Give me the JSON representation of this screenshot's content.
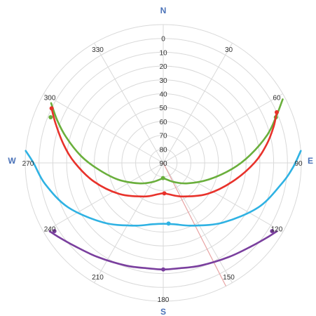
{
  "colors": {
    "grid": "#d9d9d9",
    "compass": "#4a72b8",
    "tick_text": "#333333",
    "green": "#6aaf3c",
    "red": "#e8322b",
    "blue": "#2fb2e3",
    "purple": "#7a3f9e",
    "pointer": "#e8a3a3"
  },
  "compass_labels": {
    "n": "N",
    "e": "E",
    "s": "S",
    "w": "W"
  },
  "chart_data": {
    "type": "polar-line",
    "title": "",
    "angular_axis": {
      "direction": "clockwise",
      "zero_at": "top",
      "ticks": [
        0,
        30,
        60,
        90,
        120,
        150,
        180,
        210,
        240,
        270,
        300,
        330
      ],
      "tick_labels": [
        "0",
        "30",
        "60",
        "90",
        "120",
        "150",
        "180",
        "210",
        "240",
        "270",
        "300",
        "330"
      ]
    },
    "radial_axis": {
      "label_position": "along-north",
      "ticks": [
        0,
        10,
        20,
        30,
        40,
        50,
        60,
        70,
        80,
        90
      ],
      "tick_labels": [
        "0",
        "10",
        "20",
        "30",
        "40",
        "50",
        "60",
        "70",
        "80",
        "90"
      ],
      "range_center_to_edge": [
        90,
        -10
      ],
      "grid": true
    },
    "series": [
      {
        "color": "green",
        "curve": {
          "az": [
            62,
            68,
            75,
            85,
            95,
            110,
            130,
            150,
            170,
            180,
            190,
            210,
            230,
            250,
            265,
            275,
            285,
            292,
            298
          ],
          "alt": [
            -8,
            2,
            12,
            27,
            40,
            55,
            67,
            74,
            78,
            79,
            78,
            74,
            67,
            55,
            42,
            30,
            17,
            7,
            -2
          ]
        },
        "markers": [
          {
            "az": 68,
            "alt": 2
          },
          {
            "az": 181,
            "alt": 79
          },
          {
            "az": 292,
            "alt": 2
          }
        ]
      },
      {
        "color": "red",
        "curve": {
          "az": [
            66,
            72,
            80,
            90,
            105,
            125,
            150,
            170,
            180,
            190,
            210,
            235,
            255,
            270,
            280,
            290,
            296
          ],
          "alt": [
            0,
            6,
            14,
            24,
            38,
            51,
            62,
            67,
            68,
            67,
            62,
            51,
            38,
            26,
            17,
            7,
            0
          ]
        },
        "markers": [
          {
            "az": 66,
            "alt": 0
          },
          {
            "az": 178,
            "alt": 68
          },
          {
            "az": 296,
            "alt": 0
          }
        ]
      },
      {
        "color": "blue",
        "curve": {
          "az": [
            85,
            92,
            100,
            115,
            135,
            155,
            170,
            180,
            190,
            205,
            225,
            245,
            260,
            270,
            275
          ],
          "alt": [
            -10,
            -4,
            3,
            14,
            29,
            40,
            45,
            46,
            45,
            40,
            29,
            14,
            3,
            -4,
            -10
          ]
        },
        "markers": [
          {
            "az": 175,
            "alt": 46
          }
        ]
      },
      {
        "color": "purple",
        "curve": {
          "az": [
            121,
            125,
            133,
            145,
            160,
            172,
            180,
            188,
            200,
            215,
            227,
            235,
            239
          ],
          "alt": [
            -6,
            -3,
            2,
            7,
            11,
            13,
            13,
            13,
            11,
            7,
            2,
            -3,
            -6
          ]
        },
        "markers": [
          {
            "az": 122,
            "alt": -3
          },
          {
            "az": 180,
            "alt": 13
          },
          {
            "az": 238,
            "alt": -3
          }
        ]
      }
    ],
    "pointer_line": {
      "azimuth": 153,
      "color": "pointer"
    }
  }
}
